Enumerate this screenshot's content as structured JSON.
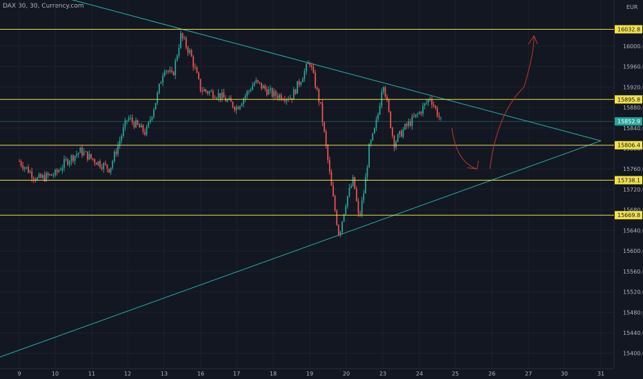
{
  "header": {
    "symbol_line": "DAX 30, 30, Currency.com",
    "currency": "EUR"
  },
  "colors": {
    "background": "#131722",
    "grid": "#1e222d",
    "up": "#26a69a",
    "down": "#ef5350",
    "level": "#f2e14c",
    "trend": "#26b5b0",
    "sketch": "#c0392b",
    "axis_text": "#b2b5be"
  },
  "chart_data": {
    "type": "candlestick",
    "y_scale": "linear",
    "y_range": [
      15370,
      16090
    ],
    "y_ticks": [
      "16000.0",
      "15960.0",
      "15920.0",
      "15880.0",
      "15840.0",
      "15800.0",
      "15760.0",
      "15720.0",
      "15680.0",
      "15640.0",
      "15600.0",
      "15560.0",
      "15520.0",
      "15480.0",
      "15440.0",
      "15400.0"
    ],
    "x_ticks": [
      "9",
      "10",
      "11",
      "12",
      "13",
      "16",
      "17",
      "18",
      "19",
      "20",
      "23",
      "24",
      "25",
      "26",
      "27",
      "30",
      "31"
    ],
    "levels": [
      {
        "label": "16032.8",
        "value": 16032.8
      },
      {
        "label": "15895.8",
        "value": 15895.8
      },
      {
        "label": "15806.4",
        "value": 15806.4
      },
      {
        "label": "15738.1",
        "value": 15738.1
      },
      {
        "label": "15669.8",
        "value": 15669.8
      }
    ],
    "last_price": {
      "label": "15852.9",
      "value": 15852.9
    },
    "trendlines": [
      {
        "name": "resistance",
        "from": [
          "8",
          16135
        ],
        "to": [
          "31",
          15815
        ]
      },
      {
        "name": "support",
        "from": [
          "8",
          15383
        ],
        "to": [
          "31",
          15815
        ]
      }
    ],
    "path": [
      [
        "9",
        15775
      ],
      [
        "9.5",
        15740
      ],
      [
        "10",
        15750
      ],
      [
        "10.3",
        15775
      ],
      [
        "10.7",
        15795
      ],
      [
        "11",
        15780
      ],
      [
        "11.5",
        15760
      ],
      [
        "12",
        15860
      ],
      [
        "12.5",
        15830
      ],
      [
        "12.8",
        15900
      ],
      [
        "13",
        15960
      ],
      [
        "13.5",
        15940
      ],
      [
        "14",
        16020
      ],
      [
        "15",
        15985
      ],
      [
        "16",
        15915
      ],
      [
        "16.5",
        15905
      ],
      [
        "17",
        15880
      ],
      [
        "17.5",
        15930
      ],
      [
        "18",
        15905
      ],
      [
        "18.5",
        15900
      ],
      [
        "19",
        15970
      ],
      [
        "19.3",
        15880
      ],
      [
        "19.6",
        15720
      ],
      [
        "19.8",
        15630
      ],
      [
        "20",
        15700
      ],
      [
        "20.4",
        15740
      ],
      [
        "20.7",
        15660
      ],
      [
        "21",
        15720
      ],
      [
        "21.5",
        15800
      ],
      [
        "22",
        15830
      ],
      [
        "22.5",
        15870
      ],
      [
        "23",
        15935
      ],
      [
        "23.3",
        15810
      ],
      [
        "23.6",
        15840
      ],
      [
        "24",
        15870
      ],
      [
        "24.3",
        15900
      ],
      [
        "24.6",
        15853
      ]
    ],
    "projection_arrows": [
      {
        "from": [
          "25",
          15840
        ],
        "to": [
          "25.5",
          15760
        ]
      },
      {
        "from": [
          "26",
          15760
        ],
        "to": [
          "26.5",
          15920
        ],
        "to2": [
          "27",
          16020
        ]
      }
    ]
  }
}
